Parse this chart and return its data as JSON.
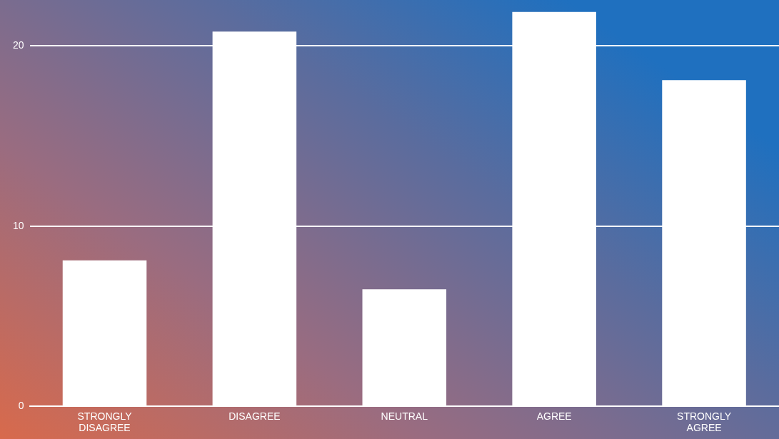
{
  "chart_data": {
    "type": "bar",
    "categories": [
      "STRONGLY DISAGREE",
      "DISAGREE",
      "NEUTRAL",
      "AGREE",
      "STRONGLY AGREE"
    ],
    "values": [
      8.1,
      20.8,
      6.5,
      21.9,
      18.1
    ],
    "color": "#ffffff",
    "ylim": [
      0,
      21.9
    ],
    "yticks": [
      0,
      10,
      20
    ],
    "grid": "y",
    "legend": false
  }
}
